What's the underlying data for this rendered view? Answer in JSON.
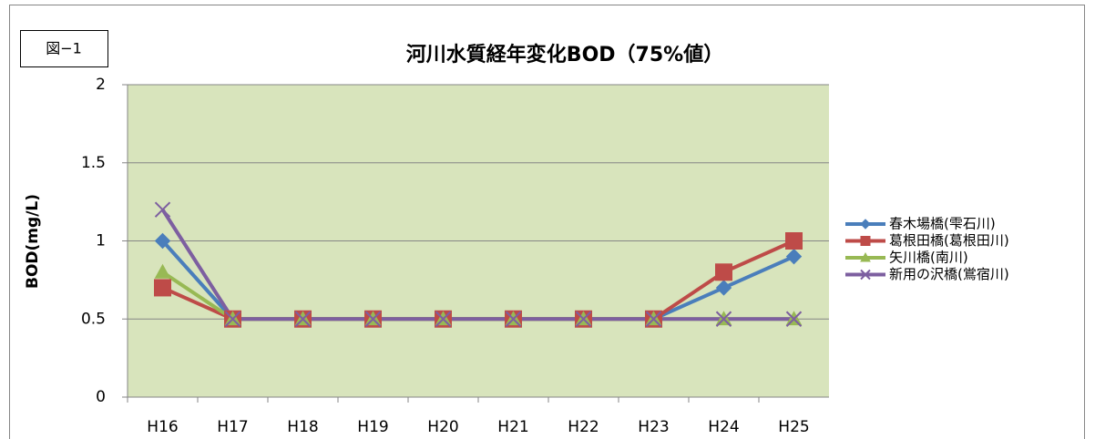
{
  "chart_data": {
    "type": "line",
    "label": "図−1",
    "title": "河川水質経年変化BOD（75%値）",
    "y_label": "BOD(mg/L)",
    "categories": [
      "H16",
      "H17",
      "H18",
      "H19",
      "H20",
      "H21",
      "H22",
      "H23",
      "H24",
      "H25"
    ],
    "ylim": [
      0,
      2
    ],
    "yticks": [
      0,
      0.5,
      1,
      1.5,
      2
    ],
    "grid": true,
    "legend": "right",
    "series": [
      {
        "name": "春木場橋(雫石川)",
        "color": "#4a7ebb",
        "marker": "diamond",
        "values": [
          1,
          0.5,
          0.5,
          0.5,
          0.5,
          0.5,
          0.5,
          0.5,
          0.7,
          0.9
        ]
      },
      {
        "name": "葛根田橋(葛根田川)",
        "color": "#be4b48",
        "marker": "square",
        "values": [
          0.7,
          0.5,
          0.5,
          0.5,
          0.5,
          0.5,
          0.5,
          0.5,
          0.8,
          1.0
        ]
      },
      {
        "name": "矢川橋(南川)",
        "color": "#98b954",
        "marker": "triangle",
        "values": [
          0.8,
          0.5,
          0.5,
          0.5,
          0.5,
          0.5,
          0.5,
          0.5,
          0.5,
          0.5
        ]
      },
      {
        "name": "新用の沢橋(鴬宿川)",
        "color": "#7d5fa0",
        "marker": "x",
        "values": [
          1.2,
          0.5,
          0.5,
          0.5,
          0.5,
          0.5,
          0.5,
          0.5,
          0.5,
          0.5
        ]
      }
    ]
  }
}
